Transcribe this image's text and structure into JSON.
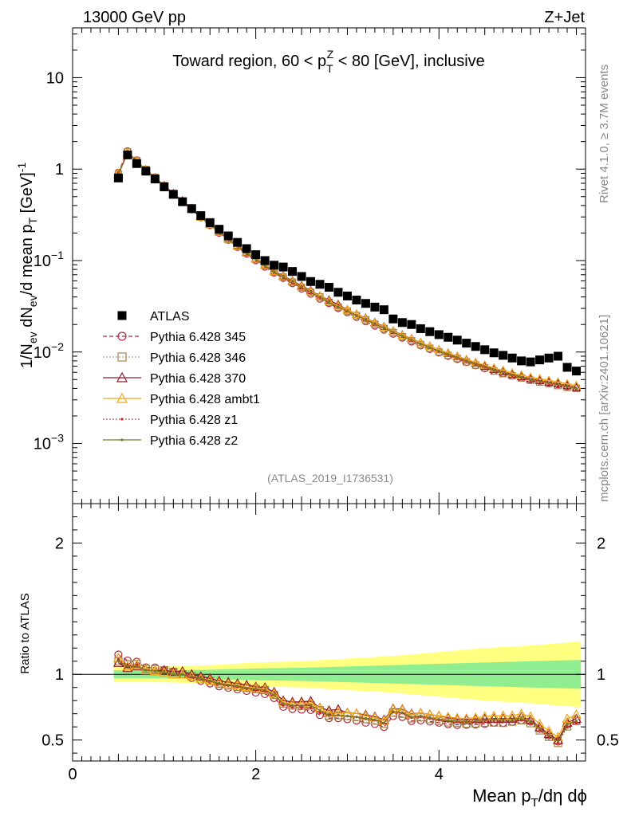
{
  "header": {
    "energy_label": "13000 GeV pp",
    "process_label": "Z+Jet",
    "title": "Toward region, 60 < p_T^Z < 80 [GeV], inclusive",
    "rivet_label": "Rivet 4.1.0, ≥ 3.7M events",
    "mcplots_label": "mcplots.cern.ch [arXiv:2401.10621]",
    "analysis_label": "(ATLAS_2019_I1736531)"
  },
  "chart_data": [
    {
      "type": "scatter",
      "panel": "main",
      "ylabel": "1/N_ev dN_ev/d mean p_T [GeV]^-1",
      "yscale": "log",
      "ylim": [
        0.00022,
        35
      ],
      "xlim": [
        0,
        5.6
      ],
      "yticks": [
        {
          "value": 0.001,
          "base": "10",
          "exp": "−3"
        },
        {
          "value": 0.01,
          "base": "10",
          "exp": "−2"
        },
        {
          "value": 0.1,
          "base": "10",
          "exp": "−1"
        },
        {
          "value": 1,
          "base": "1",
          "exp": ""
        },
        {
          "value": 10,
          "base": "10",
          "exp": ""
        }
      ],
      "x": [
        0.5,
        0.6,
        0.7,
        0.8,
        0.9,
        1.0,
        1.1,
        1.2,
        1.3,
        1.4,
        1.5,
        1.6,
        1.7,
        1.8,
        1.9,
        2.0,
        2.1,
        2.2,
        2.3,
        2.4,
        2.5,
        2.6,
        2.7,
        2.8,
        2.9,
        3.0,
        3.1,
        3.2,
        3.3,
        3.4,
        3.5,
        3.6,
        3.7,
        3.8,
        3.9,
        4.0,
        4.1,
        4.2,
        4.3,
        4.4,
        4.5,
        4.6,
        4.7,
        4.8,
        4.9,
        5.0,
        5.1,
        5.2,
        5.3,
        5.4,
        5.5
      ],
      "series": [
        {
          "name": "ATLAS",
          "style": "data",
          "color": "#000000",
          "values": [
            0.8,
            1.43,
            1.15,
            0.95,
            0.78,
            0.64,
            0.53,
            0.44,
            0.37,
            0.31,
            0.26,
            0.22,
            0.186,
            0.158,
            0.135,
            0.116,
            0.1,
            0.089,
            0.085,
            0.076,
            0.067,
            0.059,
            0.055,
            0.051,
            0.045,
            0.041,
            0.037,
            0.034,
            0.031,
            0.029,
            0.023,
            0.021,
            0.02,
            0.018,
            0.0167,
            0.0155,
            0.0145,
            0.0135,
            0.0125,
            0.0115,
            0.0106,
            0.0098,
            0.0092,
            0.0086,
            0.008,
            0.0078,
            0.0082,
            0.0086,
            0.009,
            0.0068,
            0.0062
          ]
        },
        {
          "name": "Pythia 6.428 345",
          "style": "circle-dashed",
          "color": "#b5283c",
          "values": [
            0.92,
            1.58,
            1.26,
            1.0,
            0.82,
            0.66,
            0.54,
            0.44,
            0.36,
            0.295,
            0.242,
            0.2,
            0.167,
            0.14,
            0.118,
            0.1,
            0.085,
            0.073,
            0.064,
            0.056,
            0.049,
            0.043,
            0.038,
            0.034,
            0.03,
            0.027,
            0.024,
            0.0215,
            0.0193,
            0.0174,
            0.0157,
            0.0142,
            0.0129,
            0.0117,
            0.0107,
            0.0098,
            0.009,
            0.0083,
            0.0077,
            0.0071,
            0.0066,
            0.0062,
            0.0058,
            0.0055,
            0.0052,
            0.005,
            0.0048,
            0.0046,
            0.0044,
            0.0042,
            0.004
          ]
        },
        {
          "name": "Pythia 6.428 346",
          "style": "square-dotted",
          "color": "#a5844a",
          "values": [
            0.88,
            1.54,
            1.24,
            0.99,
            0.81,
            0.66,
            0.54,
            0.44,
            0.365,
            0.3,
            0.247,
            0.204,
            0.17,
            0.143,
            0.121,
            0.103,
            0.088,
            0.075,
            0.066,
            0.058,
            0.051,
            0.045,
            0.04,
            0.035,
            0.031,
            0.028,
            0.025,
            0.0224,
            0.0201,
            0.0181,
            0.0163,
            0.0147,
            0.0133,
            0.0121,
            0.011,
            0.01,
            0.0092,
            0.0085,
            0.0078,
            0.0072,
            0.0067,
            0.0062,
            0.0058,
            0.0055,
            0.0052,
            0.0049,
            0.0047,
            0.0045,
            0.0043,
            0.0041,
            0.004
          ]
        },
        {
          "name": "Pythia 6.428 370",
          "style": "triangle-solid",
          "color": "#901c2c",
          "values": [
            0.87,
            1.5,
            1.22,
            0.98,
            0.8,
            0.66,
            0.54,
            0.45,
            0.37,
            0.305,
            0.252,
            0.209,
            0.175,
            0.147,
            0.124,
            0.105,
            0.09,
            0.077,
            0.068,
            0.06,
            0.053,
            0.047,
            0.041,
            0.037,
            0.033,
            0.029,
            0.026,
            0.0235,
            0.021,
            0.019,
            0.017,
            0.0154,
            0.014,
            0.0127,
            0.0116,
            0.0106,
            0.0097,
            0.0089,
            0.0082,
            0.0076,
            0.007,
            0.0065,
            0.0061,
            0.0057,
            0.0054,
            0.0051,
            0.0049,
            0.0047,
            0.0045,
            0.0043,
            0.0041
          ]
        },
        {
          "name": "Pythia 6.428 ambt1",
          "style": "triangle-solid",
          "color": "#f0a818",
          "values": [
            0.9,
            1.52,
            1.23,
            0.98,
            0.8,
            0.65,
            0.53,
            0.44,
            0.365,
            0.3,
            0.248,
            0.206,
            0.172,
            0.145,
            0.122,
            0.104,
            0.089,
            0.076,
            0.067,
            0.059,
            0.052,
            0.046,
            0.041,
            0.036,
            0.032,
            0.029,
            0.026,
            0.0232,
            0.0208,
            0.0188,
            0.0169,
            0.0153,
            0.0139,
            0.0127,
            0.0116,
            0.0106,
            0.0098,
            0.009,
            0.0083,
            0.0077,
            0.0072,
            0.0067,
            0.0063,
            0.0059,
            0.0056,
            0.0053,
            0.0051,
            0.0049,
            0.0047,
            0.0045,
            0.0043
          ]
        },
        {
          "name": "Pythia 6.428 z1",
          "style": "dot-dotted",
          "color": "#d41c1c",
          "values": [
            0.89,
            1.53,
            1.23,
            0.98,
            0.8,
            0.65,
            0.53,
            0.44,
            0.362,
            0.298,
            0.246,
            0.204,
            0.17,
            0.143,
            0.12,
            0.102,
            0.087,
            0.075,
            0.065,
            0.057,
            0.05,
            0.044,
            0.039,
            0.035,
            0.031,
            0.028,
            0.025,
            0.0225,
            0.0202,
            0.0182,
            0.0164,
            0.0148,
            0.0134,
            0.0122,
            0.0111,
            0.0101,
            0.0093,
            0.0086,
            0.0079,
            0.0073,
            0.0068,
            0.0063,
            0.0059,
            0.0055,
            0.0052,
            0.0049,
            0.0047,
            0.0045,
            0.0043,
            0.0041,
            0.0039
          ]
        },
        {
          "name": "Pythia 6.428 z2",
          "style": "dot-solid",
          "color": "#7a7628",
          "values": [
            0.88,
            1.52,
            1.22,
            0.98,
            0.8,
            0.65,
            0.53,
            0.44,
            0.364,
            0.3,
            0.247,
            0.205,
            0.171,
            0.144,
            0.121,
            0.103,
            0.088,
            0.075,
            0.066,
            0.058,
            0.051,
            0.045,
            0.04,
            0.035,
            0.031,
            0.028,
            0.025,
            0.0226,
            0.0203,
            0.0183,
            0.0165,
            0.0149,
            0.0135,
            0.0123,
            0.0112,
            0.0102,
            0.0094,
            0.0087,
            0.008,
            0.0074,
            0.0069,
            0.0064,
            0.006,
            0.0056,
            0.0053,
            0.005,
            0.0048,
            0.0046,
            0.0044,
            0.0042,
            0.004
          ]
        }
      ]
    },
    {
      "type": "line",
      "panel": "ratio",
      "ylabel": "Ratio to ATLAS",
      "ylim": [
        0.34,
        2.3
      ],
      "yticks": [
        0.5,
        1,
        2
      ],
      "ytick_labels": [
        "0.5",
        "1",
        "2"
      ],
      "xlim": [
        0,
        5.6
      ],
      "xticks": [
        0,
        2,
        4
      ],
      "xtick_labels": [
        "0",
        "2",
        "4"
      ],
      "xlabel": "Mean p_T/dη dϕ",
      "band": {
        "x": [
          0.45,
          1.0,
          1.5,
          2.0,
          2.5,
          3.0,
          3.5,
          4.0,
          4.5,
          5.0,
          5.55
        ],
        "inner": [
          0.03,
          0.03,
          0.035,
          0.045,
          0.05,
          0.06,
          0.07,
          0.08,
          0.09,
          0.1,
          0.11
        ],
        "outer": [
          0.06,
          0.06,
          0.07,
          0.09,
          0.1,
          0.12,
          0.14,
          0.17,
          0.2,
          0.22,
          0.25
        ],
        "inner_color": "#90ee90",
        "outer_color": "#ffff80"
      },
      "series_from_main": true
    }
  ]
}
